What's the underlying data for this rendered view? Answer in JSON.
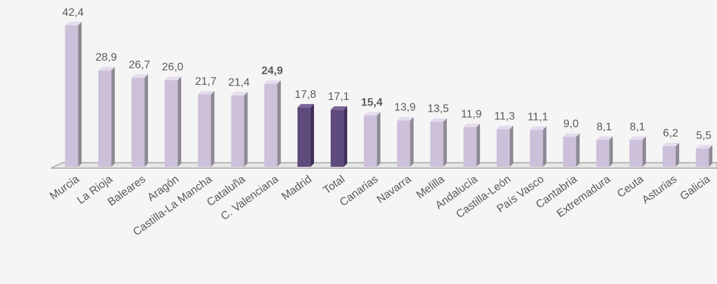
{
  "chart_data": {
    "type": "bar",
    "style": "3d-columns",
    "categories": [
      "Murcia",
      "La Rioja",
      "Baleares",
      "Aragón",
      "Castilla-La Mancha",
      "Cataluña",
      "C. Valenciana",
      "Madrid",
      "Total",
      "Canarias",
      "Navarra",
      "Melilla",
      "Andalucía",
      "Castilla-León",
      "País Vasco",
      "Cantabria",
      "Extremadura",
      "Ceuta",
      "Asturias",
      "Galicia"
    ],
    "values": [
      42.4,
      28.9,
      26.7,
      26.0,
      21.7,
      21.4,
      24.9,
      17.8,
      17.1,
      15.4,
      13.9,
      13.5,
      11.9,
      11.3,
      11.1,
      9.0,
      8.1,
      8.1,
      6.2,
      5.5
    ],
    "value_labels": [
      "42,4",
      "28,9",
      "26,7",
      "26,0",
      "21,7",
      "21,4",
      "24,9",
      "17,8",
      "17,1",
      "15,4",
      "13,9",
      "13,5",
      "11,9",
      "11,3",
      "11,1",
      "9,0",
      "8,1",
      "8,1",
      "6,2",
      "5,5"
    ],
    "bold_labels": [
      "C. Valenciana",
      "Canarias"
    ],
    "highlighted": [
      "Madrid",
      "Total"
    ],
    "colors": {
      "bar_face": "#ccc0da",
      "bar_side": "#8e8a93",
      "bar_top": "#e4dced",
      "highlight_face": "#5e4a7d",
      "highlight_side": "#3f2f58",
      "highlight_top": "#7a6498",
      "floor": "#a6a6a6",
      "label": "#595959",
      "background": "#f5f5f5"
    },
    "title": "",
    "xlabel": "",
    "ylabel": "",
    "grid": false,
    "legend": "none"
  }
}
